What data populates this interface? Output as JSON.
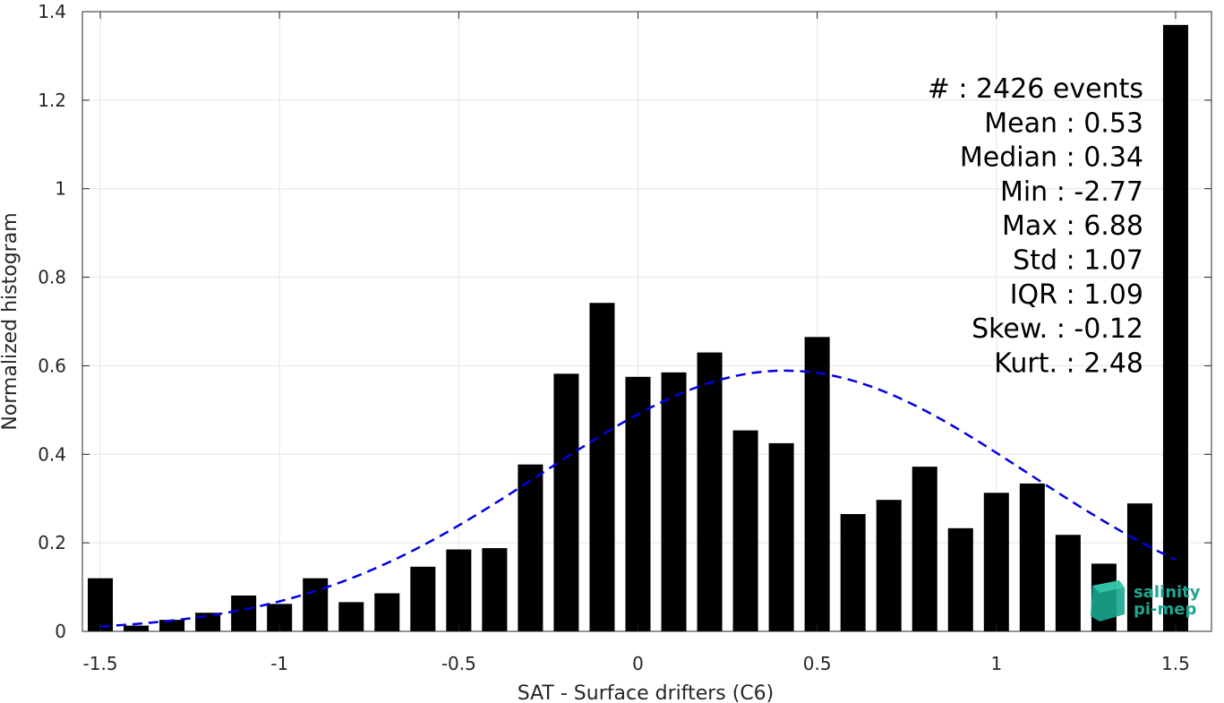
{
  "chart_data": {
    "type": "bar",
    "xlabel": "SAT - Surface drifters (C6)",
    "ylabel": "Normalized histogram",
    "xlim": [
      -1.55,
      1.6
    ],
    "ylim": [
      0,
      1.4
    ],
    "grid": true,
    "xticks": [
      -1.5,
      -1,
      -0.5,
      0,
      0.5,
      1,
      1.5
    ],
    "xtick_labels": [
      "-1.5",
      "-1",
      "-0.5",
      "0",
      "0.5",
      "1",
      "1.5"
    ],
    "yticks": [
      0,
      0.2,
      0.4,
      0.6,
      0.8,
      1,
      1.2,
      1.4
    ],
    "ytick_labels": [
      "0",
      "0.2",
      "0.4",
      "0.6",
      "0.8",
      "1",
      "1.2",
      "1.4"
    ],
    "bar_width": 0.07,
    "bar_color": "#000000",
    "bins": [
      -1.5,
      -1.4,
      -1.3,
      -1.2,
      -1.1,
      -1.0,
      -0.9,
      -0.8,
      -0.7,
      -0.6,
      -0.5,
      -0.4,
      -0.3,
      -0.2,
      -0.1,
      0.0,
      0.1,
      0.2,
      0.3,
      0.4,
      0.5,
      0.6,
      0.7,
      0.8,
      0.9,
      1.0,
      1.1,
      1.2,
      1.3,
      1.4,
      1.5
    ],
    "values": [
      0.12,
      0.013,
      0.026,
      0.042,
      0.081,
      0.062,
      0.12,
      0.066,
      0.086,
      0.146,
      0.185,
      0.188,
      0.377,
      0.582,
      0.742,
      0.575,
      0.585,
      0.63,
      0.454,
      0.425,
      0.665,
      0.265,
      0.297,
      0.372,
      0.233,
      0.313,
      0.334,
      0.218,
      0.153,
      0.289,
      1.37
    ],
    "fit_curve": {
      "type": "gaussian",
      "mean": 0.41,
      "std": 0.678,
      "peak": 0.589,
      "x_range": [
        -1.5,
        1.5
      ],
      "color": "#0000e6",
      "style": "dashed"
    },
    "stats": [
      {
        "label": "#  ",
        "value": ": 2426 events"
      },
      {
        "label": "Mean ",
        "value": ": 0.53"
      },
      {
        "label": "Median ",
        "value": ": 0.34"
      },
      {
        "label": "Min ",
        "value": ": -2.77"
      },
      {
        "label": "Max ",
        "value": ": 6.88"
      },
      {
        "label": "Std ",
        "value": ": 1.07"
      },
      {
        "label": "IQR ",
        "value": ": 1.09"
      },
      {
        "label": "Skew. ",
        "value": ": -0.12"
      },
      {
        "label": "Kurt. ",
        "value": ": 2.48"
      }
    ]
  },
  "logo": {
    "line1": "salinity",
    "line2": "pi-mep",
    "color": "#1aa690"
  }
}
